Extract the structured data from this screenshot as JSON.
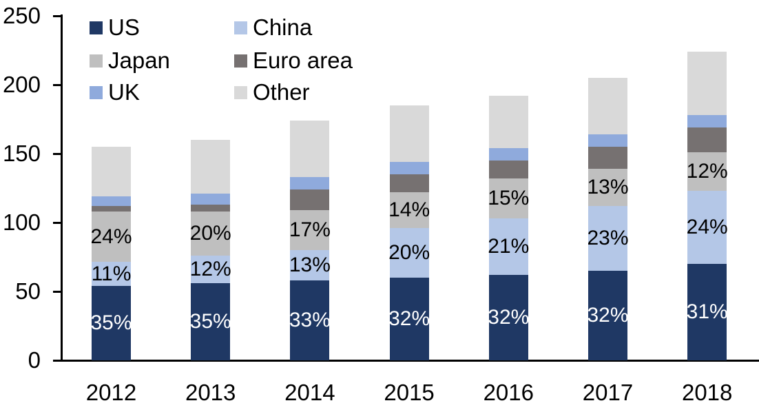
{
  "chart_data": {
    "type": "bar",
    "stacked": true,
    "title": "",
    "xlabel": "",
    "ylabel": "",
    "ylim": [
      0,
      250
    ],
    "ytick_step": 50,
    "ytick_labels": [
      "0",
      "50",
      "100",
      "150",
      "200",
      "250"
    ],
    "grid": false,
    "legend_position": "top-left, two columns, row-major",
    "categories": [
      "2012",
      "2013",
      "2014",
      "2015",
      "2016",
      "2017",
      "2018"
    ],
    "series": [
      {
        "name": "US",
        "color": "#1F3864",
        "values": [
          54,
          56,
          58,
          60,
          62,
          65,
          70
        ]
      },
      {
        "name": "China",
        "color": "#B4C7E7",
        "values": [
          17.5,
          20,
          22,
          36,
          41,
          47,
          53
        ]
      },
      {
        "name": "Japan",
        "color": "#BFBFBF",
        "values": [
          36.5,
          32,
          29,
          26,
          29,
          27,
          28
        ]
      },
      {
        "name": "Euro area",
        "color": "#767171",
        "values": [
          4,
          5,
          15,
          13,
          13,
          16,
          18
        ]
      },
      {
        "name": "UK",
        "color": "#8FAADC",
        "values": [
          7,
          8,
          9,
          9,
          9,
          9,
          9
        ]
      },
      {
        "name": "Other",
        "color": "#D9D9D9",
        "values": [
          36,
          39,
          41,
          41,
          38,
          41,
          46
        ]
      }
    ],
    "totals_estimated": [
      155,
      160,
      174,
      185,
      192,
      205,
      224
    ],
    "data_labels": {
      "US": {
        "text_color": "#FFFFFF",
        "values": [
          "35%",
          "35%",
          "33%",
          "32%",
          "32%",
          "32%",
          "31%"
        ]
      },
      "China": {
        "text_color": "#000000",
        "values": [
          "11%",
          "12%",
          "13%",
          "20%",
          "21%",
          "23%",
          "24%"
        ]
      },
      "Japan": {
        "text_color": "#000000",
        "values": [
          "24%",
          "20%",
          "17%",
          "14%",
          "15%",
          "13%",
          "12%"
        ]
      }
    }
  },
  "legend": {
    "items": [
      {
        "label": "US",
        "color": "#1F3864"
      },
      {
        "label": "China",
        "color": "#B4C7E7"
      },
      {
        "label": "Japan",
        "color": "#BFBFBF"
      },
      {
        "label": "Euro area",
        "color": "#767171"
      },
      {
        "label": "UK",
        "color": "#8FAADC"
      },
      {
        "label": "Other",
        "color": "#D9D9D9"
      }
    ]
  },
  "colors": {
    "axis": "#000000",
    "background": "#FFFFFF"
  }
}
